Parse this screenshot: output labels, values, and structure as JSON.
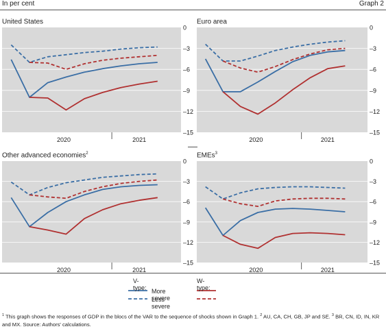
{
  "header": {
    "unit": "In per cent",
    "graph_label": "Graph 2"
  },
  "legend": {
    "v_type": "V-type:",
    "w_type": "W-type:",
    "more_severe": "More severe",
    "less_severe": "Less severe"
  },
  "colors": {
    "v_type": "#3a6ea5",
    "w_type": "#b03030",
    "panel_bg": "#d9d9d9"
  },
  "footnote": {
    "n1": "1",
    "t1": "This graph shows the responses of GDP in the blocs of the VAR to the sequence of shocks shown in Graph 1.",
    "n2": "2",
    "t2": "AU, CA, CH, GB, JP and SE.",
    "n3": "3",
    "t3": "BR, CN, ID, IN, KR and MX.",
    "source": "Source: Authors' calculations."
  },
  "chart_data": [
    {
      "type": "line",
      "title": "United States",
      "title_note": "",
      "x": [
        0,
        1,
        2,
        3,
        4,
        5,
        6,
        7,
        8
      ],
      "x_tick_labels": [
        "2020",
        "2021"
      ],
      "ylim": [
        -15,
        0
      ],
      "y_ticks": [
        0,
        -3,
        -6,
        -9,
        -12,
        -15
      ],
      "series": [
        {
          "type": "V-type",
          "severity": "more severe",
          "style": "solid",
          "values": [
            -4.6,
            -10.0,
            -7.9,
            -7.1,
            -6.4,
            -5.9,
            -5.5,
            -5.2,
            -5.0
          ]
        },
        {
          "type": "V-type",
          "severity": "less severe",
          "style": "dashed",
          "values": [
            -2.5,
            -5.0,
            -4.2,
            -3.9,
            -3.6,
            -3.4,
            -3.1,
            -2.9,
            -2.8
          ]
        },
        {
          "type": "W-type",
          "severity": "more severe",
          "style": "solid",
          "values": [
            null,
            -10.0,
            -10.1,
            -11.8,
            -10.2,
            -9.3,
            -8.6,
            -8.1,
            -7.7
          ]
        },
        {
          "type": "W-type",
          "severity": "less severe",
          "style": "dashed",
          "values": [
            null,
            -5.0,
            -5.1,
            -6.0,
            -5.2,
            -4.7,
            -4.4,
            -4.2,
            -4.0
          ]
        }
      ]
    },
    {
      "type": "line",
      "title": "Euro area",
      "title_note": "",
      "x": [
        0,
        1,
        2,
        3,
        4,
        5,
        6,
        7,
        8
      ],
      "x_tick_labels": [
        "2020",
        "2021"
      ],
      "ylim": [
        -15,
        0
      ],
      "y_ticks": [
        0,
        -3,
        -6,
        -9,
        -12,
        -15
      ],
      "series": [
        {
          "type": "V-type",
          "severity": "more severe",
          "style": "solid",
          "values": [
            -4.5,
            -9.2,
            -9.2,
            -7.8,
            -6.3,
            -4.9,
            -4.0,
            -3.5,
            -3.3
          ]
        },
        {
          "type": "V-type",
          "severity": "less severe",
          "style": "dashed",
          "values": [
            -2.4,
            -4.8,
            -4.8,
            -4.1,
            -3.3,
            -2.8,
            -2.4,
            -2.1,
            -1.9
          ]
        },
        {
          "type": "W-type",
          "severity": "more severe",
          "style": "solid",
          "values": [
            null,
            -9.2,
            -11.3,
            -12.4,
            -10.8,
            -8.9,
            -7.2,
            -5.9,
            -5.5
          ]
        },
        {
          "type": "W-type",
          "severity": "less severe",
          "style": "dashed",
          "values": [
            null,
            -4.8,
            -5.8,
            -6.4,
            -5.6,
            -4.6,
            -3.8,
            -3.2,
            -3.0
          ]
        }
      ]
    },
    {
      "type": "line",
      "title": "Other advanced economies",
      "title_note": "2",
      "x": [
        0,
        1,
        2,
        3,
        4,
        5,
        6,
        7,
        8
      ],
      "x_tick_labels": [
        "2020",
        "2021"
      ],
      "ylim": [
        -15,
        0
      ],
      "y_ticks": [
        0,
        -3,
        -6,
        -9,
        -12,
        -15
      ],
      "series": [
        {
          "type": "V-type",
          "severity": "more severe",
          "style": "solid",
          "values": [
            -5.4,
            -9.7,
            -7.6,
            -6.0,
            -5.0,
            -4.2,
            -3.8,
            -3.6,
            -3.5
          ]
        },
        {
          "type": "V-type",
          "severity": "less severe",
          "style": "dashed",
          "values": [
            -3.1,
            -5.0,
            -3.9,
            -3.2,
            -2.8,
            -2.4,
            -2.2,
            -2.0,
            -1.9
          ]
        },
        {
          "type": "W-type",
          "severity": "more severe",
          "style": "solid",
          "values": [
            null,
            -9.7,
            -10.2,
            -10.8,
            -8.5,
            -7.2,
            -6.3,
            -5.8,
            -5.4
          ]
        },
        {
          "type": "W-type",
          "severity": "less severe",
          "style": "dashed",
          "values": [
            null,
            -5.0,
            -5.3,
            -5.5,
            -4.5,
            -3.8,
            -3.3,
            -3.0,
            -2.8
          ]
        }
      ]
    },
    {
      "type": "line",
      "title": "EMEs",
      "title_note": "3",
      "x": [
        0,
        1,
        2,
        3,
        4,
        5,
        6,
        7,
        8
      ],
      "x_tick_labels": [
        "2020",
        "2021"
      ],
      "ylim": [
        -15,
        0
      ],
      "y_ticks": [
        0,
        -3,
        -6,
        -9,
        -12,
        -15
      ],
      "series": [
        {
          "type": "V-type",
          "severity": "more severe",
          "style": "solid",
          "values": [
            -6.9,
            -11.0,
            -8.8,
            -7.6,
            -7.1,
            -7.0,
            -7.1,
            -7.3,
            -7.5
          ]
        },
        {
          "type": "V-type",
          "severity": "less severe",
          "style": "dashed",
          "values": [
            -3.8,
            -5.6,
            -4.7,
            -4.1,
            -3.9,
            -3.8,
            -3.8,
            -3.9,
            -4.0
          ]
        },
        {
          "type": "W-type",
          "severity": "more severe",
          "style": "solid",
          "values": [
            null,
            -11.0,
            -12.3,
            -12.9,
            -11.3,
            -10.7,
            -10.6,
            -10.7,
            -10.9
          ]
        },
        {
          "type": "W-type",
          "severity": "less severe",
          "style": "dashed",
          "values": [
            null,
            -5.6,
            -6.3,
            -6.7,
            -5.9,
            -5.6,
            -5.5,
            -5.5,
            -5.6
          ]
        }
      ]
    }
  ]
}
